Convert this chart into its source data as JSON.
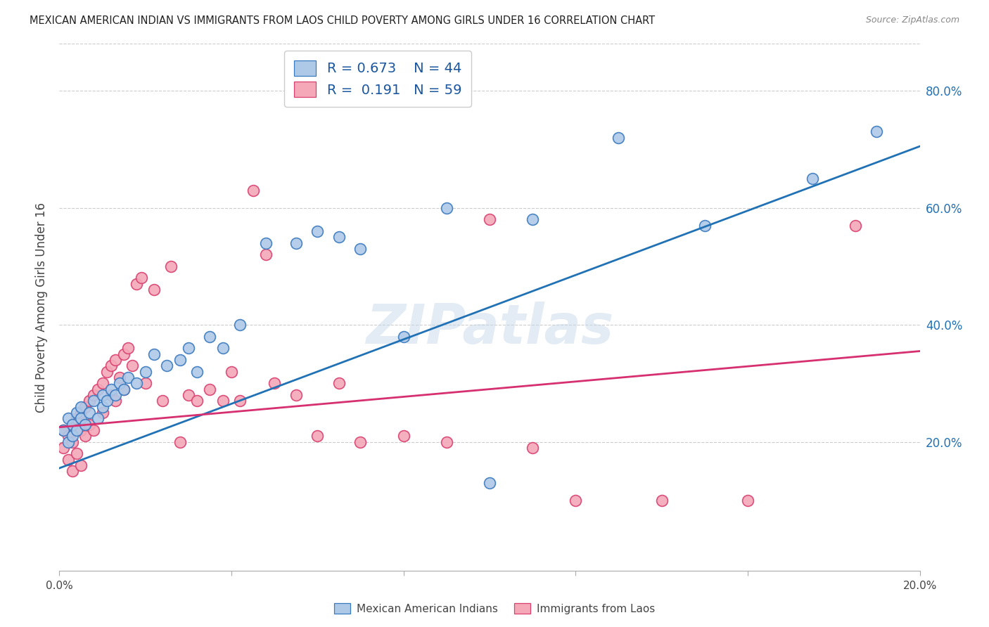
{
  "title": "MEXICAN AMERICAN INDIAN VS IMMIGRANTS FROM LAOS CHILD POVERTY AMONG GIRLS UNDER 16 CORRELATION CHART",
  "source": "Source: ZipAtlas.com",
  "ylabel": "Child Poverty Among Girls Under 16",
  "y_tick_labels": [
    "20.0%",
    "40.0%",
    "60.0%",
    "80.0%"
  ],
  "y_tick_values": [
    0.2,
    0.4,
    0.6,
    0.8
  ],
  "xlim": [
    0.0,
    0.2
  ],
  "ylim": [
    -0.02,
    0.88
  ],
  "legend_r1": "R = 0.673",
  "legend_n1": "N = 44",
  "legend_r2": "R =  0.191",
  "legend_n2": "N = 59",
  "blue_fill": "#aec9e8",
  "blue_edge": "#3a7abf",
  "pink_fill": "#f4a8b8",
  "pink_edge": "#d94070",
  "blue_line_color": "#2171b5",
  "pink_line_color": "#d63070",
  "watermark": "ZIPatlas",
  "blue_scatter_x": [
    0.001,
    0.002,
    0.002,
    0.003,
    0.003,
    0.004,
    0.004,
    0.005,
    0.005,
    0.006,
    0.007,
    0.008,
    0.009,
    0.01,
    0.01,
    0.011,
    0.012,
    0.013,
    0.014,
    0.015,
    0.016,
    0.018,
    0.02,
    0.022,
    0.025,
    0.028,
    0.03,
    0.032,
    0.035,
    0.038,
    0.042,
    0.048,
    0.055,
    0.06,
    0.065,
    0.07,
    0.08,
    0.09,
    0.1,
    0.11,
    0.13,
    0.15,
    0.175,
    0.19
  ],
  "blue_scatter_y": [
    0.22,
    0.2,
    0.24,
    0.21,
    0.23,
    0.22,
    0.25,
    0.24,
    0.26,
    0.23,
    0.25,
    0.27,
    0.24,
    0.26,
    0.28,
    0.27,
    0.29,
    0.28,
    0.3,
    0.29,
    0.31,
    0.3,
    0.32,
    0.35,
    0.33,
    0.34,
    0.36,
    0.32,
    0.38,
    0.36,
    0.4,
    0.54,
    0.54,
    0.56,
    0.55,
    0.53,
    0.38,
    0.6,
    0.13,
    0.58,
    0.72,
    0.57,
    0.65,
    0.73
  ],
  "pink_scatter_x": [
    0.001,
    0.001,
    0.002,
    0.002,
    0.003,
    0.003,
    0.003,
    0.004,
    0.004,
    0.005,
    0.005,
    0.005,
    0.006,
    0.006,
    0.007,
    0.007,
    0.008,
    0.008,
    0.009,
    0.01,
    0.01,
    0.011,
    0.012,
    0.012,
    0.013,
    0.013,
    0.014,
    0.015,
    0.015,
    0.016,
    0.017,
    0.018,
    0.019,
    0.02,
    0.022,
    0.024,
    0.026,
    0.028,
    0.03,
    0.032,
    0.035,
    0.038,
    0.04,
    0.042,
    0.045,
    0.048,
    0.05,
    0.055,
    0.06,
    0.065,
    0.07,
    0.08,
    0.09,
    0.1,
    0.11,
    0.12,
    0.14,
    0.16,
    0.185
  ],
  "pink_scatter_y": [
    0.22,
    0.19,
    0.21,
    0.17,
    0.23,
    0.2,
    0.15,
    0.24,
    0.18,
    0.25,
    0.22,
    0.16,
    0.26,
    0.21,
    0.27,
    0.23,
    0.28,
    0.22,
    0.29,
    0.3,
    0.25,
    0.32,
    0.33,
    0.28,
    0.34,
    0.27,
    0.31,
    0.35,
    0.29,
    0.36,
    0.33,
    0.47,
    0.48,
    0.3,
    0.46,
    0.27,
    0.5,
    0.2,
    0.28,
    0.27,
    0.29,
    0.27,
    0.32,
    0.27,
    0.63,
    0.52,
    0.3,
    0.28,
    0.21,
    0.3,
    0.2,
    0.21,
    0.2,
    0.58,
    0.19,
    0.1,
    0.1,
    0.1,
    0.57
  ]
}
